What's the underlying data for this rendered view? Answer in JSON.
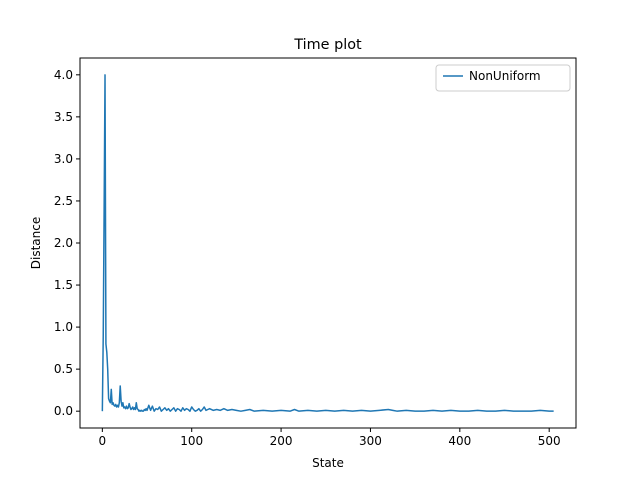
{
  "chart_data": {
    "type": "line",
    "title": "Time plot",
    "xlabel": "State",
    "ylabel": "Distance",
    "xlim": [
      -25,
      530
    ],
    "ylim": [
      -0.2,
      4.2
    ],
    "xticks": [
      0,
      100,
      200,
      300,
      400,
      500
    ],
    "yticks": [
      0.0,
      0.5,
      1.0,
      1.5,
      2.0,
      2.5,
      3.0,
      3.5,
      4.0
    ],
    "xtick_labels": [
      "0",
      "100",
      "200",
      "300",
      "400",
      "500"
    ],
    "ytick_labels": [
      "0.0",
      "0.5",
      "1.0",
      "1.5",
      "2.0",
      "2.5",
      "3.0",
      "3.5",
      "4.0"
    ],
    "grid": false,
    "legend_position": "top-right",
    "series": [
      {
        "name": "NonUniform",
        "color": "#1f77b4",
        "x": [
          0,
          1,
          2,
          3,
          4,
          5,
          6,
          7,
          8,
          9,
          10,
          11,
          12,
          13,
          14,
          15,
          16,
          17,
          18,
          19,
          20,
          21,
          22,
          23,
          24,
          25,
          26,
          27,
          28,
          29,
          30,
          31,
          32,
          33,
          34,
          35,
          36,
          37,
          38,
          39,
          40,
          41,
          42,
          43,
          44,
          45,
          46,
          47,
          48,
          49,
          50,
          52,
          54,
          56,
          58,
          60,
          62,
          64,
          66,
          68,
          70,
          72,
          74,
          76,
          78,
          80,
          82,
          84,
          86,
          88,
          90,
          92,
          94,
          96,
          98,
          100,
          102,
          104,
          106,
          108,
          110,
          112,
          114,
          116,
          118,
          120,
          124,
          128,
          132,
          136,
          140,
          145,
          150,
          155,
          160,
          165,
          170,
          180,
          190,
          200,
          210,
          215,
          220,
          230,
          240,
          250,
          260,
          270,
          280,
          290,
          300,
          310,
          320,
          325,
          330,
          340,
          350,
          360,
          370,
          380,
          390,
          400,
          410,
          420,
          430,
          440,
          450,
          460,
          470,
          480,
          490,
          500,
          505
        ],
        "y": [
          0.0,
          0.9,
          2.4,
          4.0,
          0.8,
          0.7,
          0.5,
          0.15,
          0.12,
          0.1,
          0.26,
          0.08,
          0.1,
          0.07,
          0.06,
          0.08,
          0.05,
          0.07,
          0.05,
          0.1,
          0.3,
          0.12,
          0.06,
          0.1,
          0.04,
          0.05,
          0.03,
          0.06,
          0.03,
          0.04,
          0.09,
          0.05,
          0.02,
          0.03,
          0.05,
          0.02,
          0.04,
          0.02,
          0.1,
          0.03,
          0.02,
          0.0,
          0.01,
          0.0,
          0.01,
          0.0,
          0.0,
          0.02,
          0.01,
          0.03,
          0.01,
          0.07,
          0.01,
          0.06,
          0.0,
          0.03,
          0.02,
          0.05,
          0.0,
          0.02,
          0.04,
          0.01,
          0.03,
          0.0,
          0.02,
          0.04,
          0.0,
          0.03,
          0.02,
          0.0,
          0.04,
          0.01,
          0.03,
          0.02,
          0.0,
          0.05,
          0.02,
          0.0,
          0.01,
          0.03,
          0.0,
          0.02,
          0.05,
          0.01,
          0.02,
          0.03,
          0.01,
          0.02,
          0.01,
          0.03,
          0.01,
          0.02,
          0.01,
          0.0,
          0.01,
          0.02,
          0.0,
          0.01,
          0.0,
          0.01,
          0.0,
          0.02,
          0.0,
          0.01,
          0.0,
          0.01,
          0.0,
          0.01,
          0.0,
          0.01,
          0.0,
          0.01,
          0.02,
          0.01,
          0.0,
          0.01,
          0.0,
          0.0,
          0.01,
          0.0,
          0.01,
          0.0,
          0.0,
          0.01,
          0.0,
          0.0,
          0.01,
          0.0,
          0.0,
          0.0,
          0.01,
          0.0,
          0.0
        ]
      }
    ]
  }
}
